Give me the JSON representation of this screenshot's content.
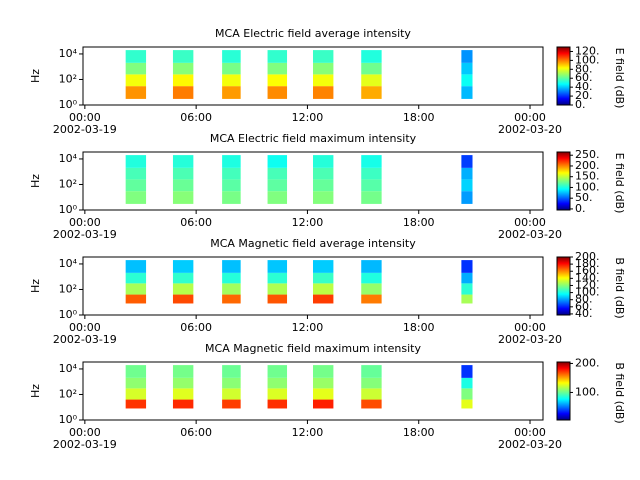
{
  "chart_data": [
    {
      "type": "spectrogram",
      "title": "MCA  Electric field average intensity",
      "ylabel": "Hz",
      "colorbar_label": "E field (dB)",
      "xlim": [
        -0.1,
        24.7
      ],
      "xticks": [
        {
          "value": 0,
          "label": "00:00"
        },
        {
          "value": 6,
          "label": "06:00"
        },
        {
          "value": 12,
          "label": "12:00"
        },
        {
          "value": 18,
          "label": "18:00"
        },
        {
          "value": 24,
          "label": "00:00"
        }
      ],
      "date_labels": [
        {
          "value": 0,
          "label": "2002-03-19"
        },
        {
          "value": 24,
          "label": "2002-03-20"
        }
      ],
      "ylim": [
        1,
        35000
      ],
      "log_y": true,
      "yticks": [
        {
          "value": 1,
          "label": "10⁰"
        },
        {
          "value": 100,
          "label": "10²"
        },
        {
          "value": 10000,
          "label": "10⁴"
        }
      ],
      "clim": [
        0,
        130
      ],
      "cticks": [
        {
          "value": 0,
          "label": "0."
        },
        {
          "value": 20,
          "label": "20."
        },
        {
          "value": 40,
          "label": "40."
        },
        {
          "value": 60,
          "label": "60."
        },
        {
          "value": 80,
          "label": "80."
        },
        {
          "value": 100,
          "label": "100."
        },
        {
          "value": 120,
          "label": "120."
        }
      ],
      "y_edges": [
        3,
        30,
        250,
        2000,
        20000
      ],
      "segments": [
        {
          "start": 2.2,
          "end": 3.3,
          "values": [
            95,
            80,
            65,
            55
          ]
        },
        {
          "start": 4.75,
          "end": 5.85,
          "values": [
            98,
            82,
            66,
            56
          ]
        },
        {
          "start": 7.4,
          "end": 8.4,
          "values": [
            94,
            80,
            64,
            54
          ]
        },
        {
          "start": 9.85,
          "end": 10.9,
          "values": [
            96,
            81,
            65,
            55
          ]
        },
        {
          "start": 12.3,
          "end": 13.4,
          "values": [
            97,
            80,
            66,
            56
          ]
        },
        {
          "start": 14.9,
          "end": 16.0,
          "values": [
            92,
            78,
            63,
            53
          ]
        },
        {
          "start": 20.3,
          "end": 20.9,
          "values": [
            40,
            50,
            42,
            35
          ]
        }
      ]
    },
    {
      "type": "spectrogram",
      "title": "MCA  Electric field maximum intensity",
      "ylabel": "Hz",
      "colorbar_label": "E field (dB)",
      "xlim": [
        -0.1,
        24.7
      ],
      "xticks": [
        {
          "value": 0,
          "label": "00:00"
        },
        {
          "value": 6,
          "label": "06:00"
        },
        {
          "value": 12,
          "label": "12:00"
        },
        {
          "value": 18,
          "label": "18:00"
        },
        {
          "value": 24,
          "label": "00:00"
        }
      ],
      "date_labels": [
        {
          "value": 0,
          "label": "2002-03-19"
        },
        {
          "value": 24,
          "label": "2002-03-20"
        }
      ],
      "ylim": [
        1,
        35000
      ],
      "log_y": true,
      "yticks": [
        {
          "value": 1,
          "label": "10⁰"
        },
        {
          "value": 100,
          "label": "10²"
        },
        {
          "value": 10000,
          "label": "10⁴"
        }
      ],
      "clim": [
        -5,
        265
      ],
      "cticks": [
        {
          "value": 0,
          "label": "0."
        },
        {
          "value": 50,
          "label": "50."
        },
        {
          "value": 100,
          "label": "100."
        },
        {
          "value": 150,
          "label": "150."
        },
        {
          "value": 200,
          "label": "200."
        },
        {
          "value": 250,
          "label": "250."
        }
      ],
      "y_edges": [
        3,
        30,
        250,
        2000,
        20000
      ],
      "segments": [
        {
          "start": 2.2,
          "end": 3.3,
          "values": [
            130,
            122,
            115,
            105
          ]
        },
        {
          "start": 4.75,
          "end": 5.85,
          "values": [
            132,
            124,
            116,
            106
          ]
        },
        {
          "start": 7.4,
          "end": 8.4,
          "values": [
            128,
            120,
            114,
            104
          ]
        },
        {
          "start": 9.85,
          "end": 10.9,
          "values": [
            130,
            121,
            115,
            100
          ]
        },
        {
          "start": 12.3,
          "end": 13.4,
          "values": [
            131,
            123,
            116,
            106
          ]
        },
        {
          "start": 14.9,
          "end": 16.0,
          "values": [
            127,
            119,
            112,
            102
          ]
        },
        {
          "start": 20.3,
          "end": 20.9,
          "values": [
            70,
            85,
            75,
            45
          ]
        }
      ]
    },
    {
      "type": "spectrogram",
      "title": "MCA  Magnetic field average intensity",
      "ylabel": "Hz",
      "colorbar_label": "B field (dB)",
      "xlim": [
        -0.1,
        24.7
      ],
      "xticks": [
        {
          "value": 0,
          "label": "00:00"
        },
        {
          "value": 6,
          "label": "06:00"
        },
        {
          "value": 12,
          "label": "12:00"
        },
        {
          "value": 18,
          "label": "18:00"
        },
        {
          "value": 24,
          "label": "00:00"
        }
      ],
      "date_labels": [
        {
          "value": 0,
          "label": "2002-03-19"
        },
        {
          "value": 24,
          "label": "2002-03-20"
        }
      ],
      "ylim": [
        1,
        35000
      ],
      "log_y": true,
      "yticks": [
        {
          "value": 1,
          "label": "10⁰"
        },
        {
          "value": 100,
          "label": "10²"
        },
        {
          "value": 10000,
          "label": "10⁴"
        }
      ],
      "clim": [
        37,
        200
      ],
      "cticks": [
        {
          "value": 40,
          "label": "40."
        },
        {
          "value": 60,
          "label": "60."
        },
        {
          "value": 80,
          "label": "80."
        },
        {
          "value": 100,
          "label": "100."
        },
        {
          "value": 120,
          "label": "120."
        },
        {
          "value": 140,
          "label": "140."
        },
        {
          "value": 160,
          "label": "160."
        },
        {
          "value": 180,
          "label": "180."
        },
        {
          "value": 200,
          "label": "200."
        }
      ],
      "y_edges": [
        8,
        40,
        300,
        2000,
        20000
      ],
      "segments": [
        {
          "start": 2.2,
          "end": 3.3,
          "values": [
            165,
            125,
            105,
            88
          ]
        },
        {
          "start": 4.75,
          "end": 5.85,
          "values": [
            168,
            127,
            106,
            90
          ]
        },
        {
          "start": 7.4,
          "end": 8.4,
          "values": [
            163,
            124,
            104,
            88
          ]
        },
        {
          "start": 9.85,
          "end": 10.9,
          "values": [
            166,
            126,
            105,
            89
          ]
        },
        {
          "start": 12.3,
          "end": 13.4,
          "values": [
            170,
            128,
            107,
            90
          ]
        },
        {
          "start": 14.9,
          "end": 16.0,
          "values": [
            160,
            122,
            103,
            87
          ]
        },
        {
          "start": 20.3,
          "end": 20.9,
          "values": [
            125,
            105,
            85,
            65
          ]
        }
      ]
    },
    {
      "type": "spectrogram",
      "title": "MCA  Magnetic field maximum intensity",
      "ylabel": "Hz",
      "colorbar_label": "B field (dB)",
      "xlim": [
        -0.1,
        24.7
      ],
      "xticks": [
        {
          "value": 0,
          "label": "00:00"
        },
        {
          "value": 6,
          "label": "06:00"
        },
        {
          "value": 12,
          "label": "12:00"
        },
        {
          "value": 18,
          "label": "18:00"
        },
        {
          "value": 24,
          "label": "00:00"
        }
      ],
      "date_labels": [
        {
          "value": 0,
          "label": "2002-03-19"
        },
        {
          "value": 24,
          "label": "2002-03-20"
        }
      ],
      "ylim": [
        1,
        35000
      ],
      "log_y": true,
      "yticks": [
        {
          "value": 1,
          "label": "10⁰"
        },
        {
          "value": 100,
          "label": "10²"
        },
        {
          "value": 10000,
          "label": "10⁴"
        }
      ],
      "clim": [
        5,
        205
      ],
      "cticks": [
        {
          "value": 100,
          "label": "100."
        },
        {
          "value": 200,
          "label": "200."
        }
      ],
      "y_edges": [
        8,
        40,
        300,
        2000,
        20000
      ],
      "segments": [
        {
          "start": 2.2,
          "end": 3.3,
          "values": [
            170,
            122,
            108,
            102
          ]
        },
        {
          "start": 4.75,
          "end": 5.85,
          "values": [
            172,
            124,
            109,
            103
          ]
        },
        {
          "start": 7.4,
          "end": 8.4,
          "values": [
            168,
            121,
            107,
            101
          ]
        },
        {
          "start": 9.85,
          "end": 10.9,
          "values": [
            171,
            123,
            108,
            102
          ]
        },
        {
          "start": 12.3,
          "end": 13.4,
          "values": [
            174,
            125,
            110,
            103
          ]
        },
        {
          "start": 14.9,
          "end": 16.0,
          "values": [
            165,
            120,
            106,
            100
          ]
        },
        {
          "start": 20.3,
          "end": 20.9,
          "values": [
            125,
            105,
            85,
            40
          ]
        }
      ]
    }
  ]
}
